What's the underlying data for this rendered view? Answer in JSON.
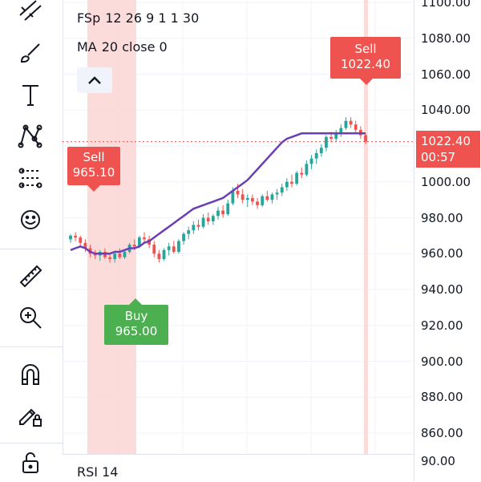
{
  "legend": {
    "indicators": [
      {
        "name": "FSp",
        "params": "12 26 9 1 1 30"
      },
      {
        "name": "MA",
        "params": "20 close 0"
      }
    ]
  },
  "price_axis": {
    "ticks": [
      "1100.00",
      "1080.00",
      "1060.00",
      "1040.00",
      "1020.00",
      "1000.00",
      "980.00",
      "960.00",
      "940.00",
      "920.00",
      "900.00",
      "880.00",
      "860.00"
    ],
    "tick_values": [
      1100,
      1080,
      1060,
      1040,
      1020,
      1000,
      980,
      960,
      940,
      920,
      900,
      880,
      860
    ],
    "current_price": "1022.40",
    "countdown": "00:57",
    "rsi_tick": "90.00"
  },
  "signals": [
    {
      "id": "sell-1",
      "line1": "Sell",
      "line2": "965.10",
      "type": "sell"
    },
    {
      "id": "buy-1",
      "line1": "Buy",
      "line2": "965.00",
      "type": "buy"
    },
    {
      "id": "sell-2",
      "line1": "Sell",
      "line2": "1022.40",
      "type": "sell"
    }
  ],
  "rsi": {
    "label": "RSI",
    "period": "14"
  },
  "colors": {
    "up": "#26a69a",
    "down": "#ef5350",
    "ma": "#6a3fb5",
    "sell_bg": "#ef5350",
    "buy_bg": "#4caf50",
    "sell_zone": "#fbd5d5",
    "grid": "#f0f3fa"
  },
  "toolbar": {
    "icons": [
      "trend-lines-icon",
      "brush-icon",
      "text-icon",
      "pattern-icon",
      "prediction-icon",
      "emoji-icon",
      "ruler-icon",
      "zoom-in-icon",
      "magnet-icon",
      "lock-drawing-icon",
      "lock-icon"
    ]
  },
  "chart_data": {
    "type": "candlestick",
    "ylim": [
      851,
      1104
    ],
    "ma_period": 20,
    "candles": [
      [
        968,
        971,
        966,
        970
      ],
      [
        970,
        972,
        967,
        969
      ],
      [
        969,
        970,
        964,
        966
      ],
      [
        966,
        968,
        961,
        963
      ],
      [
        963,
        965,
        958,
        960
      ],
      [
        960,
        962,
        957,
        959
      ],
      [
        959,
        962,
        956,
        961
      ],
      [
        961,
        963,
        957,
        958
      ],
      [
        958,
        960,
        955,
        957
      ],
      [
        957,
        961,
        955,
        960
      ],
      [
        960,
        963,
        957,
        958
      ],
      [
        958,
        962,
        957,
        961
      ],
      [
        961,
        966,
        960,
        965
      ],
      [
        965,
        968,
        962,
        964
      ],
      [
        964,
        970,
        963,
        969
      ],
      [
        969,
        972,
        966,
        968
      ],
      [
        968,
        970,
        963,
        965
      ],
      [
        965,
        967,
        958,
        960
      ],
      [
        960,
        962,
        955,
        957
      ],
      [
        957,
        963,
        956,
        962
      ],
      [
        962,
        966,
        959,
        964
      ],
      [
        964,
        967,
        960,
        961
      ],
      [
        961,
        968,
        960,
        967
      ],
      [
        967,
        972,
        965,
        971
      ],
      [
        971,
        975,
        968,
        973
      ],
      [
        973,
        978,
        971,
        976
      ],
      [
        976,
        979,
        973,
        975
      ],
      [
        975,
        982,
        974,
        980
      ],
      [
        980,
        983,
        976,
        978
      ],
      [
        978,
        982,
        976,
        981
      ],
      [
        981,
        986,
        979,
        984
      ],
      [
        984,
        987,
        980,
        982
      ],
      [
        982,
        990,
        981,
        988
      ],
      [
        988,
        997,
        987,
        995
      ],
      [
        995,
        999,
        991,
        993
      ],
      [
        993,
        996,
        988,
        990
      ],
      [
        990,
        993,
        986,
        991
      ],
      [
        991,
        993,
        987,
        989
      ],
      [
        989,
        991,
        985,
        987
      ],
      [
        987,
        993,
        986,
        992
      ],
      [
        992,
        995,
        989,
        990
      ],
      [
        990,
        994,
        988,
        993
      ],
      [
        993,
        996,
        990,
        994
      ],
      [
        994,
        999,
        992,
        997
      ],
      [
        997,
        1002,
        995,
        1000
      ],
      [
        1000,
        1004,
        997,
        999
      ],
      [
        999,
        1006,
        998,
        1005
      ],
      [
        1005,
        1008,
        1002,
        1004
      ],
      [
        1004,
        1012,
        1003,
        1010
      ],
      [
        1010,
        1015,
        1007,
        1013
      ],
      [
        1013,
        1018,
        1010,
        1016
      ],
      [
        1016,
        1021,
        1014,
        1019
      ],
      [
        1019,
        1026,
        1017,
        1025
      ],
      [
        1025,
        1028,
        1022,
        1024
      ],
      [
        1024,
        1029,
        1022,
        1027
      ],
      [
        1027,
        1032,
        1025,
        1030
      ],
      [
        1030,
        1036,
        1029,
        1034
      ],
      [
        1034,
        1036,
        1030,
        1032
      ],
      [
        1032,
        1034,
        1027,
        1029
      ],
      [
        1029,
        1031,
        1024,
        1026
      ],
      [
        1026,
        1027,
        1021,
        1022.4
      ]
    ],
    "ma": [
      963,
      965,
      966,
      966,
      965,
      963,
      962,
      961,
      961,
      961,
      961,
      962,
      962,
      963,
      965,
      966,
      968,
      970,
      972,
      973,
      975,
      977,
      979,
      981,
      984,
      986,
      988,
      989,
      990,
      990,
      991,
      992,
      994,
      997,
      1000,
      1004,
      1008,
      1012,
      1016,
      1020,
      1024,
      1026,
      1027,
      1027,
      1027,
      1027,
      1027,
      1027,
      1027,
      1027,
      1027,
      1027,
      1027,
      1027,
      1027,
      1027,
      1027,
      1027,
      1027,
      1027,
      1027
    ],
    "ma_real": [
      962,
      963,
      964,
      963,
      961,
      960,
      960,
      960,
      960,
      961,
      961,
      962,
      963,
      963,
      964,
      966,
      967,
      969,
      971,
      973,
      975,
      977,
      979,
      981,
      983,
      985,
      986,
      987,
      988,
      989,
      990,
      991,
      993,
      995,
      997,
      999,
      1001,
      1004,
      1007,
      1010,
      1013,
      1016,
      1019,
      1022,
      1024,
      1025,
      1026,
      1027,
      1027,
      1027,
      1027,
      1027,
      1027,
      1027,
      1027,
      1027,
      1027,
      1027,
      1027,
      1027,
      1027
    ],
    "sell_zone_candle_range": [
      6,
      21
    ]
  }
}
